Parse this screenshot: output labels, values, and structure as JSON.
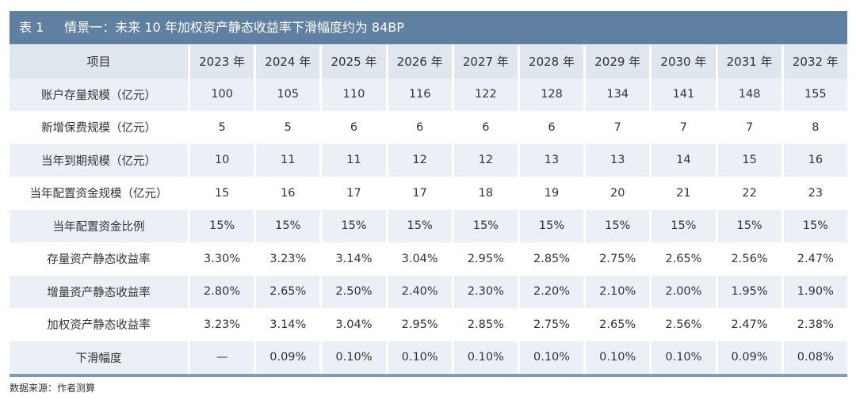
{
  "title": {
    "number": "表 1",
    "text": "情景一：未来 10 年加权资产静态收益率下滑幅度约为 84BP"
  },
  "table": {
    "header": [
      "项目",
      "2023 年",
      "2024 年",
      "2025 年",
      "2026 年",
      "2027 年",
      "2028 年",
      "2029 年",
      "2030 年",
      "2031 年",
      "2032 年"
    ],
    "rows": [
      [
        "账户存量规模（亿元）",
        "100",
        "105",
        "110",
        "116",
        "122",
        "128",
        "134",
        "141",
        "148",
        "155"
      ],
      [
        "新增保费规模（亿元）",
        "5",
        "5",
        "6",
        "6",
        "6",
        "6",
        "7",
        "7",
        "7",
        "8"
      ],
      [
        "当年到期规模（亿元）",
        "10",
        "11",
        "11",
        "12",
        "12",
        "13",
        "13",
        "14",
        "15",
        "16"
      ],
      [
        "当年配置资金规模（亿元）",
        "15",
        "16",
        "17",
        "17",
        "18",
        "19",
        "20",
        "21",
        "22",
        "23"
      ],
      [
        "当年配置资金比例",
        "15%",
        "15%",
        "15%",
        "15%",
        "15%",
        "15%",
        "15%",
        "15%",
        "15%",
        "15%"
      ],
      [
        "存量资产静态收益率",
        "3.30%",
        "3.23%",
        "3.14%",
        "3.04%",
        "2.95%",
        "2.85%",
        "2.75%",
        "2.65%",
        "2.56%",
        "2.47%"
      ],
      [
        "增量资产静态收益率",
        "2.80%",
        "2.65%",
        "2.50%",
        "2.40%",
        "2.30%",
        "2.20%",
        "2.10%",
        "2.00%",
        "1.95%",
        "1.90%"
      ],
      [
        "加权资产静态收益率",
        "3.23%",
        "3.14%",
        "3.04%",
        "2.95%",
        "2.85%",
        "2.75%",
        "2.65%",
        "2.56%",
        "2.47%",
        "2.38%"
      ],
      [
        "下滑幅度",
        "—",
        "0.09%",
        "0.10%",
        "0.10%",
        "0.10%",
        "0.10%",
        "0.10%",
        "0.10%",
        "0.09%",
        "0.08%"
      ]
    ]
  },
  "source": "数据来源：作者测算"
}
